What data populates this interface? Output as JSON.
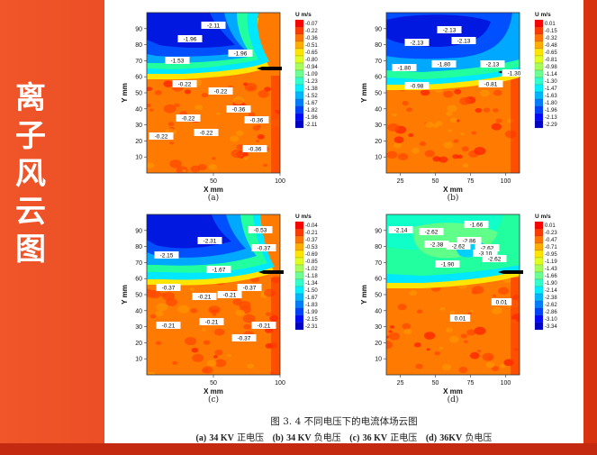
{
  "slide": {
    "side_title": [
      "离",
      "子",
      "风",
      "云",
      "图"
    ]
  },
  "figure": {
    "caption": "图 3. 4  不同电压下的电流体场云图",
    "subcaptions": [
      {
        "tag": "(a)",
        "bold": "34 KV",
        "text": "正电压"
      },
      {
        "tag": "(b)",
        "bold": "34 KV",
        "text": "负电压"
      },
      {
        "tag": "(c)",
        "bold": "36 KV",
        "text": "正电压"
      },
      {
        "tag": "(d)",
        "bold": "36KV",
        "text": "负电压"
      }
    ],
    "panels": [
      {
        "label": "(a)",
        "xlabel": "X mm",
        "ylabel": "Y mm",
        "xticks": [
          "50",
          "100"
        ],
        "yticks": [
          "10",
          "20",
          "30",
          "40",
          "50",
          "60",
          "70",
          "80",
          "90"
        ],
        "legend_title": "U m/s",
        "legend_levels": [
          "-0.07",
          "-0.22",
          "-0.36",
          "-0.51",
          "-0.65",
          "-0.80",
          "-0.94",
          "-1.09",
          "-1.23",
          "-1.38",
          "-1.52",
          "-1.67",
          "-1.82",
          "-1.96",
          "-2.11"
        ],
        "contour_labels": [
          "-2.11",
          "-1.96",
          "-1.96",
          "-1.53",
          "-0.22",
          "-0.22",
          "-0.22",
          "-0.36",
          "-0.36",
          "-0.22",
          "-0.22",
          "-0.36"
        ]
      },
      {
        "label": "(b)",
        "xlabel": "X mm",
        "ylabel": "Y mm",
        "xticks": [
          "25",
          "50",
          "75",
          "100"
        ],
        "yticks": [
          "10",
          "20",
          "30",
          "40",
          "50",
          "60",
          "70",
          "80",
          "90"
        ],
        "legend_title": "U m/s",
        "legend_levels": [
          "0.01",
          "-0.15",
          "-0.32",
          "-0.48",
          "-0.65",
          "-0.81",
          "-0.98",
          "-1.14",
          "-1.30",
          "-1.47",
          "-1.63",
          "-1.80",
          "-1.96",
          "-2.13",
          "-2.29"
        ],
        "contour_labels": [
          "-2.13",
          "-2.13",
          "-2.13",
          "-1.80",
          "-1.80",
          "-2.13",
          "-1.30",
          "-0.98",
          "-0.81"
        ]
      },
      {
        "label": "(c)",
        "xlabel": "X mm",
        "ylabel": "Y mm",
        "xticks": [
          "50",
          "100"
        ],
        "yticks": [
          "10",
          "20",
          "30",
          "40",
          "50",
          "60",
          "70",
          "80",
          "90"
        ],
        "legend_title": "U m/s",
        "legend_levels": [
          "-0.04",
          "-0.21",
          "-0.37",
          "-0.53",
          "-0.69",
          "-0.85",
          "-1.02",
          "-1.18",
          "-1.34",
          "-1.50",
          "-1.67",
          "-1.83",
          "-1.99",
          "-2.15",
          "-2.31"
        ],
        "contour_labels": [
          "-0.53",
          "-2.31",
          "-0.37",
          "-2.15",
          "-1.67",
          "-0.37",
          "-0.21",
          "-0.21",
          "-0.37",
          "-0.21",
          "-0.21",
          "-0.37",
          "-0.21"
        ]
      },
      {
        "label": "(d)",
        "xlabel": "X mm",
        "ylabel": "Y mm",
        "xticks": [
          "25",
          "50",
          "75",
          "100"
        ],
        "yticks": [
          "10",
          "20",
          "30",
          "40",
          "50",
          "60",
          "70",
          "80",
          "90"
        ],
        "legend_title": "U m/s",
        "legend_levels": [
          "0.01",
          "-0.23",
          "-0.47",
          "-0.71",
          "-0.95",
          "-1.19",
          "-1.43",
          "-1.66",
          "-1.90",
          "-2.14",
          "-2.38",
          "-2.62",
          "-2.86",
          "-3.10",
          "-3.34"
        ],
        "contour_labels": [
          "-1.66",
          "-2.14",
          "-2.62",
          "-2.86",
          "-2.62",
          "-2.38",
          "-2.62",
          "-3.10",
          "-2.62",
          "-1.90",
          "0.01",
          "0.01"
        ]
      }
    ]
  }
}
